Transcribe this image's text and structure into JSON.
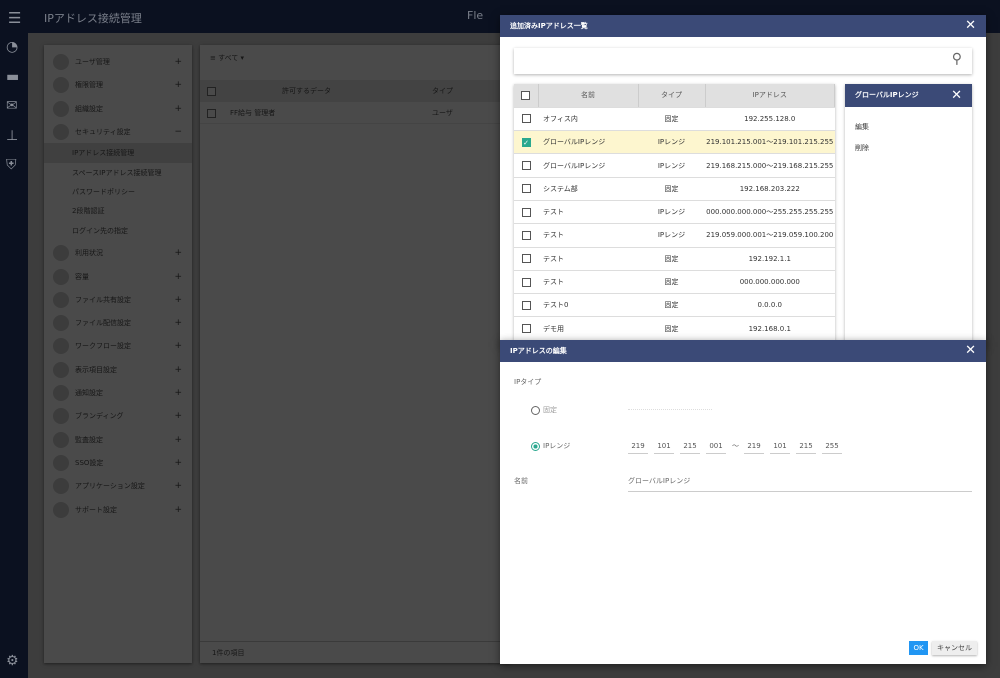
{
  "header": {
    "title": "IPアドレス接続管理",
    "logo": "Fle"
  },
  "rail": [
    "speedometer-icon",
    "folder-icon",
    "mail-icon",
    "stamp-icon",
    "shield-icon",
    "gear-icon"
  ],
  "sidebar": {
    "items": [
      {
        "label": "ユーザ管理",
        "toggle": "+"
      },
      {
        "label": "権限管理",
        "toggle": "+"
      },
      {
        "label": "組織設定",
        "toggle": "+"
      },
      {
        "label": "セキュリティ設定",
        "toggle": "−"
      }
    ],
    "sub_items": [
      "IPアドレス接続管理",
      "スペースIPアドレス接続管理",
      "パスワードポリシー",
      "2段階認証",
      "ログイン先の指定"
    ],
    "items2": [
      {
        "label": "利用状況",
        "toggle": "+"
      },
      {
        "label": "容量",
        "toggle": "+"
      },
      {
        "label": "ファイル共有設定",
        "toggle": "+"
      },
      {
        "label": "ファイル配信設定",
        "toggle": "+"
      },
      {
        "label": "ワークフロー設定",
        "toggle": "+"
      },
      {
        "label": "表示項目設定",
        "toggle": "+"
      },
      {
        "label": "通知設定",
        "toggle": "+"
      },
      {
        "label": "ブランディング",
        "toggle": "+"
      },
      {
        "label": "監査設定",
        "toggle": "+"
      },
      {
        "label": "SSO設定",
        "toggle": "+"
      },
      {
        "label": "アプリケーション設定",
        "toggle": "+"
      },
      {
        "label": "サポート設定",
        "toggle": "+"
      }
    ]
  },
  "main": {
    "filter": "すべて",
    "col_data": "許可するデータ",
    "col_type": "タイプ",
    "row": {
      "name": "FF給与 管理者",
      "type": "ユーザ"
    },
    "footer": "1件の項目"
  },
  "list_dialog": {
    "title": "追加済みIPアドレス一覧",
    "columns": [
      "名前",
      "タイプ",
      "IPアドレス"
    ],
    "rows": [
      {
        "name": "オフィス内",
        "type": "固定",
        "ip": "192.255.128.0",
        "checked": false
      },
      {
        "name": "グローバルIPレンジ",
        "type": "IPレンジ",
        "ip": "219.101.215.001〜219.101.215.255",
        "checked": true
      },
      {
        "name": "グローバルIPレンジ",
        "type": "IPレンジ",
        "ip": "219.168.215.000〜219.168.215.255",
        "checked": false
      },
      {
        "name": "システム部",
        "type": "固定",
        "ip": "192.168.203.222",
        "checked": false
      },
      {
        "name": "テスト",
        "type": "IPレンジ",
        "ip": "000.000.000.000〜255.255.255.255",
        "checked": false
      },
      {
        "name": "テスト",
        "type": "IPレンジ",
        "ip": "219.059.000.001〜219.059.100.200",
        "checked": false
      },
      {
        "name": "テスト",
        "type": "固定",
        "ip": "192.192.1.1",
        "checked": false
      },
      {
        "name": "テスト",
        "type": "固定",
        "ip": "000.000.000.000",
        "checked": false
      },
      {
        "name": "テスト0",
        "type": "固定",
        "ip": "0.0.0.0",
        "checked": false
      },
      {
        "name": "デモ用",
        "type": "固定",
        "ip": "192.168.0.1",
        "checked": false
      }
    ],
    "panel": {
      "title": "グローバルIPレンジ",
      "actions": [
        "編集",
        "削除"
      ]
    }
  },
  "edit_dialog": {
    "title": "IPアドレスの編集",
    "ip_type_label": "IPタイプ",
    "fixed_label": "固定",
    "range_label": "IPレンジ",
    "selected": "IPレンジ",
    "range_from": [
      "219",
      "101",
      "215",
      "001"
    ],
    "range_to": [
      "219",
      "101",
      "215",
      "255"
    ],
    "tilde": "〜",
    "name_label": "名前",
    "name_value": "グローバルIPレンジ",
    "ok": "OK",
    "cancel": "キャンセル"
  },
  "colors": {
    "dialog_header": "#3b4a77",
    "accent": "#2aa88f",
    "ok_button": "#2196f3",
    "selected_row": "#fdf6cf"
  }
}
